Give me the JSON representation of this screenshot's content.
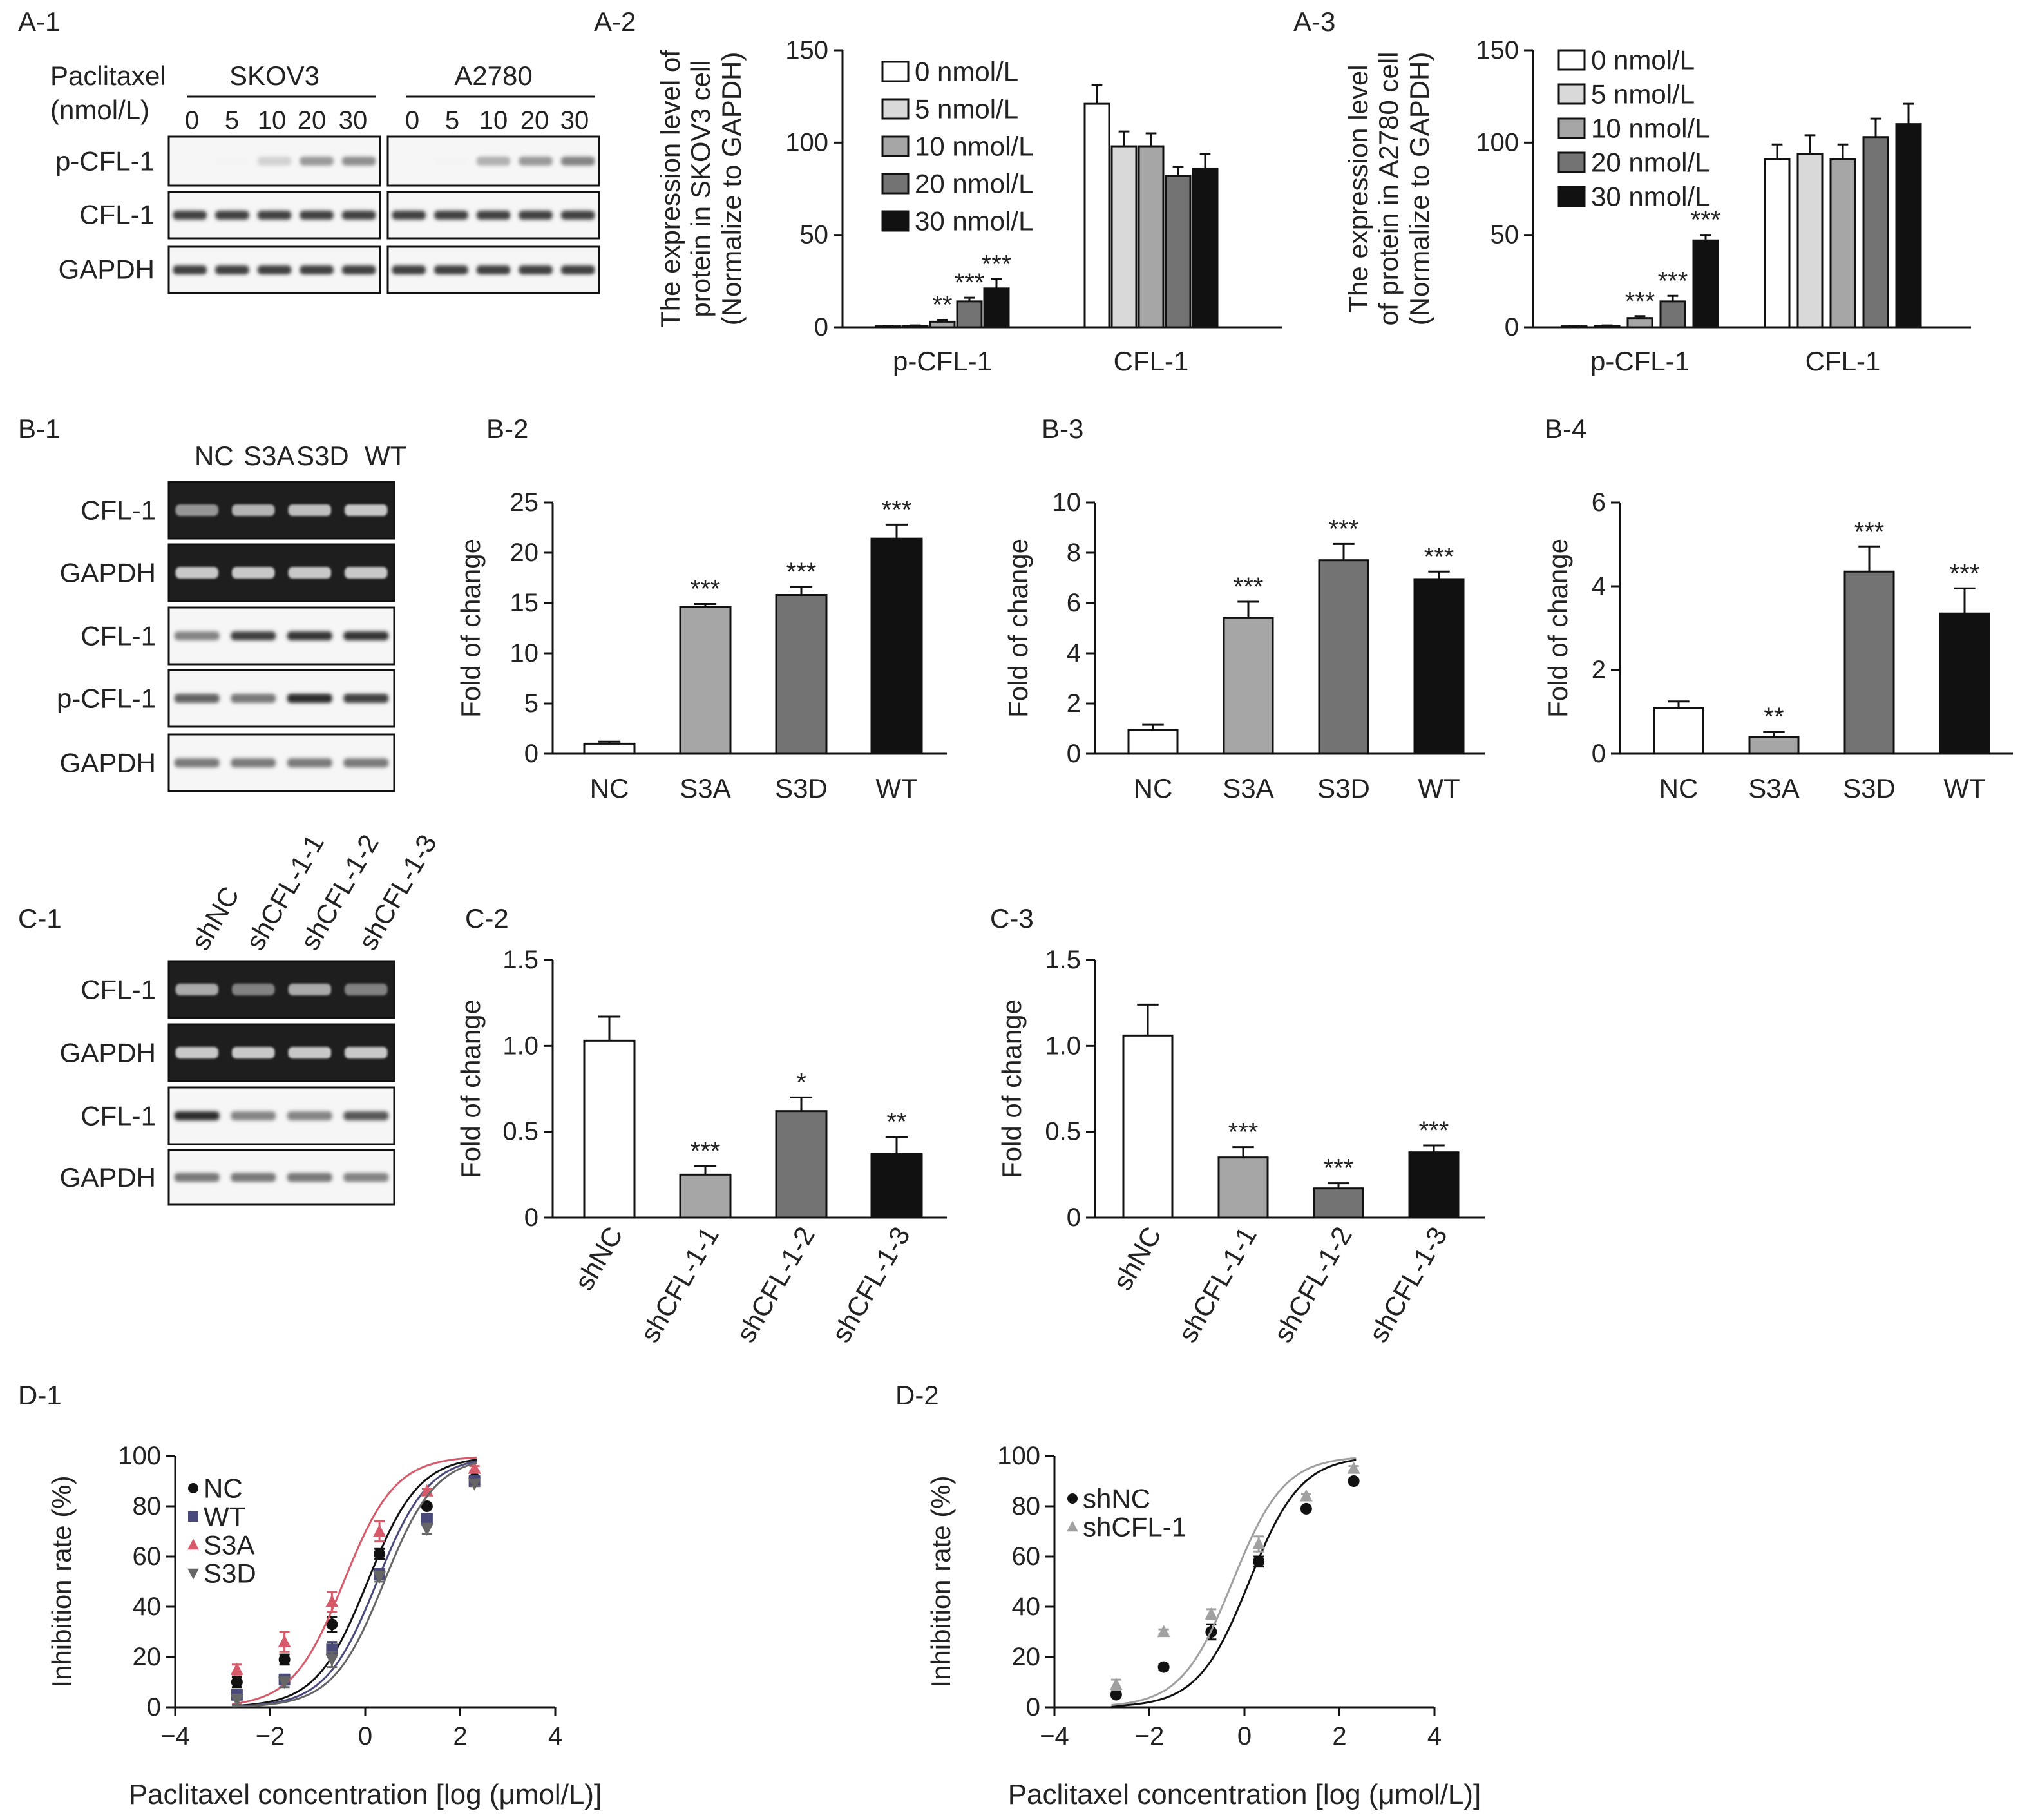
{
  "colors": {
    "bar_white": "#ffffff",
    "bar_lightgray": "#d9d9d9",
    "bar_gray": "#a6a6a6",
    "bar_darkgray": "#737373",
    "bar_black": "#111111",
    "series_nc": "#111111",
    "series_wt": "#4a4a7a",
    "series_s3a": "#d65a6a",
    "series_s3d": "#666666",
    "series_shcfl": "#a0a0a0"
  },
  "blots": [
    {
      "id": "A-1",
      "label": "A-1",
      "header_lines": [
        "Paclitaxel",
        "(nmol/L)"
      ],
      "groups": [
        {
          "name": "SKOV3",
          "lanes": [
            "0",
            "5",
            "10",
            "20",
            "30"
          ]
        },
        {
          "name": "A2780",
          "lanes": [
            "0",
            "5",
            "10",
            "20",
            "30"
          ]
        }
      ],
      "rows": [
        "p-CFL-1",
        "CFL-1",
        "GAPDH"
      ]
    },
    {
      "id": "B-1",
      "label": "B-1",
      "lanes": [
        "NC",
        "S3A",
        "S3D",
        "WT"
      ],
      "rows": [
        "CFL-1",
        "GAPDH",
        "CFL-1",
        "p-CFL-1",
        "GAPDH"
      ]
    },
    {
      "id": "C-1",
      "label": "C-1",
      "lanes": [
        "shNC",
        "shCFL-1-1",
        "shCFL-1-2",
        "shCFL-1-3"
      ],
      "rows": [
        "CFL-1",
        "GAPDH",
        "CFL-1",
        "GAPDH"
      ]
    }
  ],
  "chart_data": [
    {
      "id": "A-2",
      "label": "A-2",
      "type": "bar",
      "ylabel_lines": [
        "The expression level of",
        "protein in SKOV3 cell",
        "(Normalize to GAPDH)"
      ],
      "ylim": [
        0,
        150
      ],
      "yticks": [
        0,
        50,
        100,
        150
      ],
      "categories": [
        "p-CFL-1",
        "CFL-1"
      ],
      "legend_position": "top-left",
      "series": [
        {
          "name": "0 nmol/L",
          "color": "#ffffff",
          "values": [
            0.5,
            121
          ],
          "errors": [
            0.2,
            10
          ],
          "sig": [
            "",
            ""
          ]
        },
        {
          "name": "5 nmol/L",
          "color": "#d9d9d9",
          "values": [
            0.8,
            98
          ],
          "errors": [
            0.2,
            8
          ],
          "sig": [
            "",
            ""
          ]
        },
        {
          "name": "10 nmol/L",
          "color": "#a6a6a6",
          "values": [
            3,
            98
          ],
          "errors": [
            1,
            7
          ],
          "sig": [
            "**",
            ""
          ]
        },
        {
          "name": "20 nmol/L",
          "color": "#737373",
          "values": [
            14,
            82
          ],
          "errors": [
            2,
            5
          ],
          "sig": [
            "***",
            ""
          ]
        },
        {
          "name": "30 nmol/L",
          "color": "#111111",
          "values": [
            21,
            86
          ],
          "errors": [
            5,
            8
          ],
          "sig": [
            "***",
            ""
          ]
        }
      ]
    },
    {
      "id": "A-3",
      "label": "A-3",
      "type": "bar",
      "ylabel_lines": [
        "The expression level",
        "of protein in A2780 cell",
        "(Normalize to GAPDH)"
      ],
      "ylim": [
        0,
        150
      ],
      "yticks": [
        0,
        50,
        100,
        150
      ],
      "categories": [
        "p-CFL-1",
        "CFL-1"
      ],
      "legend_position": "top-left",
      "series": [
        {
          "name": "0 nmol/L",
          "color": "#ffffff",
          "values": [
            0.5,
            91
          ],
          "errors": [
            0.2,
            8
          ],
          "sig": [
            "",
            ""
          ]
        },
        {
          "name": "5 nmol/L",
          "color": "#d9d9d9",
          "values": [
            0.8,
            94
          ],
          "errors": [
            0.2,
            10
          ],
          "sig": [
            "",
            ""
          ]
        },
        {
          "name": "10 nmol/L",
          "color": "#a6a6a6",
          "values": [
            5,
            91
          ],
          "errors": [
            1,
            8
          ],
          "sig": [
            "***",
            ""
          ]
        },
        {
          "name": "20 nmol/L",
          "color": "#737373",
          "values": [
            14,
            103
          ],
          "errors": [
            3,
            10
          ],
          "sig": [
            "***",
            ""
          ]
        },
        {
          "name": "30 nmol/L",
          "color": "#111111",
          "values": [
            47,
            110
          ],
          "errors": [
            3,
            11
          ],
          "sig": [
            "***",
            ""
          ]
        }
      ]
    },
    {
      "id": "B-2",
      "label": "B-2",
      "type": "bar",
      "ylabel_lines": [
        "Fold of change"
      ],
      "ylim": [
        0,
        25
      ],
      "yticks": [
        0,
        5,
        10,
        15,
        20,
        25
      ],
      "categories": [
        "NC",
        "S3A",
        "S3D",
        "WT"
      ],
      "values": [
        1.0,
        14.6,
        15.8,
        21.4
      ],
      "errors": [
        0.2,
        0.3,
        0.8,
        1.4
      ],
      "colors": [
        "#ffffff",
        "#a6a6a6",
        "#737373",
        "#111111"
      ],
      "sig": [
        "",
        "***",
        "***",
        "***"
      ]
    },
    {
      "id": "B-3",
      "label": "B-3",
      "type": "bar",
      "ylabel_lines": [
        "Fold of change"
      ],
      "ylim": [
        0,
        10
      ],
      "yticks": [
        0,
        2,
        4,
        6,
        8,
        10
      ],
      "categories": [
        "NC",
        "S3A",
        "S3D",
        "WT"
      ],
      "values": [
        0.95,
        5.4,
        7.7,
        6.95
      ],
      "errors": [
        0.2,
        0.65,
        0.65,
        0.3
      ],
      "colors": [
        "#ffffff",
        "#a6a6a6",
        "#737373",
        "#111111"
      ],
      "sig": [
        "",
        "***",
        "***",
        "***"
      ]
    },
    {
      "id": "B-4",
      "label": "B-4",
      "type": "bar",
      "ylabel_lines": [
        "Fold of change"
      ],
      "ylim": [
        0,
        6
      ],
      "yticks": [
        0,
        2,
        4,
        6
      ],
      "categories": [
        "NC",
        "S3A",
        "S3D",
        "WT"
      ],
      "values": [
        1.1,
        0.4,
        4.35,
        3.35
      ],
      "errors": [
        0.15,
        0.12,
        0.6,
        0.6
      ],
      "colors": [
        "#ffffff",
        "#a6a6a6",
        "#737373",
        "#111111"
      ],
      "sig": [
        "",
        "**",
        "***",
        "***"
      ]
    },
    {
      "id": "C-2",
      "label": "C-2",
      "type": "bar",
      "ylabel_lines": [
        "Fold of change"
      ],
      "ylim": [
        0,
        1.5
      ],
      "yticks": [
        "0",
        "0.5",
        "1.0",
        "1.5"
      ],
      "categories": [
        "shNC",
        "shCFL-1-1",
        "shCFL-1-2",
        "shCFL-1-3"
      ],
      "values": [
        1.03,
        0.25,
        0.62,
        0.37
      ],
      "errors": [
        0.14,
        0.05,
        0.08,
        0.1
      ],
      "colors": [
        "#ffffff",
        "#a6a6a6",
        "#737373",
        "#111111"
      ],
      "sig": [
        "",
        "***",
        "*",
        "**"
      ]
    },
    {
      "id": "C-3",
      "label": "C-3",
      "type": "bar",
      "ylabel_lines": [
        "Fold of change"
      ],
      "ylim": [
        0,
        1.5
      ],
      "yticks": [
        "0",
        "0.5",
        "1.0",
        "1.5"
      ],
      "categories": [
        "shNC",
        "shCFL-1-1",
        "shCFL-1-2",
        "shCFL-1-3"
      ],
      "values": [
        1.06,
        0.35,
        0.17,
        0.38
      ],
      "errors": [
        0.18,
        0.06,
        0.03,
        0.04
      ],
      "colors": [
        "#ffffff",
        "#a6a6a6",
        "#737373",
        "#111111"
      ],
      "sig": [
        "",
        "***",
        "***",
        "***"
      ]
    },
    {
      "id": "D-1",
      "label": "D-1",
      "type": "scatter",
      "xlabel": "Paclitaxel concentration [log (μmol/L)]",
      "ylabel": "Inhibition rate (%)",
      "xlim": [
        -4,
        4
      ],
      "ylim": [
        0,
        100
      ],
      "xticks": [
        "−4",
        "−2",
        "0",
        "2",
        "4"
      ],
      "yticks": [
        0,
        20,
        40,
        60,
        80,
        100
      ],
      "legend_position": "top-left",
      "series": [
        {
          "name": "NC",
          "marker": "circle",
          "color": "#111111",
          "x": [
            -2.7,
            -1.7,
            -0.7,
            0.3,
            1.3,
            2.3
          ],
          "y": [
            10,
            19,
            33,
            61,
            80,
            91
          ],
          "errors": [
            2,
            2,
            3,
            2,
            1,
            1
          ],
          "fit": {
            "bottom": 0,
            "top": 100,
            "ec50": 0.05,
            "hill": 0.5
          }
        },
        {
          "name": "WT",
          "marker": "square",
          "color": "#4a4a7a",
          "x": [
            -2.7,
            -1.7,
            -0.7,
            0.3,
            1.3,
            2.3
          ],
          "y": [
            5,
            11,
            23,
            53,
            75,
            90
          ],
          "errors": [
            2,
            2,
            3,
            2,
            1,
            1
          ],
          "fit": {
            "bottom": 0,
            "top": 100,
            "ec50": 0.25,
            "hill": 0.5
          }
        },
        {
          "name": "S3A",
          "marker": "triangle",
          "color": "#d65a6a",
          "x": [
            -2.7,
            -1.7,
            -0.7,
            0.3,
            1.3,
            2.3
          ],
          "y": [
            15,
            26,
            42,
            70,
            86,
            95
          ],
          "errors": [
            2,
            4,
            4,
            4,
            1,
            1
          ],
          "fit": {
            "bottom": 0,
            "top": 100,
            "ec50": -0.45,
            "hill": 0.5
          }
        },
        {
          "name": "S3D",
          "marker": "triangle-down",
          "color": "#666666",
          "x": [
            -2.7,
            -1.7,
            -0.7,
            0.3,
            1.3,
            2.3
          ],
          "y": [
            3,
            10,
            19,
            52,
            71,
            89
          ],
          "errors": [
            2,
            2,
            3,
            2,
            2,
            1
          ],
          "fit": {
            "bottom": 0,
            "top": 100,
            "ec50": 0.4,
            "hill": 0.5
          }
        }
      ]
    },
    {
      "id": "D-2",
      "label": "D-2",
      "type": "scatter",
      "xlabel": "Paclitaxel concentration [log (μmol/L)]",
      "ylabel": "Inhibition rate (%)",
      "xlim": [
        -4,
        4
      ],
      "ylim": [
        0,
        100
      ],
      "xticks": [
        "−4",
        "−2",
        "0",
        "2",
        "4"
      ],
      "yticks": [
        0,
        20,
        40,
        60,
        80,
        100
      ],
      "legend_position": "top-left",
      "series": [
        {
          "name": "shNC",
          "marker": "circle",
          "color": "#111111",
          "x": [
            -2.7,
            -1.7,
            -0.7,
            0.3,
            1.3,
            2.3
          ],
          "y": [
            5,
            16,
            30,
            58,
            79,
            90
          ],
          "errors": [
            1,
            1,
            3,
            2,
            1,
            1
          ],
          "fit": {
            "bottom": 0,
            "top": 100,
            "ec50": 0.1,
            "hill": 0.5
          }
        },
        {
          "name": "shCFL-1",
          "marker": "triangle",
          "color": "#a0a0a0",
          "x": [
            -2.7,
            -1.7,
            -0.7,
            0.3,
            1.3,
            2.3
          ],
          "y": [
            9,
            30,
            37,
            65,
            84,
            95
          ],
          "errors": [
            2,
            1,
            2,
            3,
            1,
            1
          ],
          "fit": {
            "bottom": 0,
            "top": 100,
            "ec50": -0.25,
            "hill": 0.5
          }
        }
      ]
    }
  ]
}
